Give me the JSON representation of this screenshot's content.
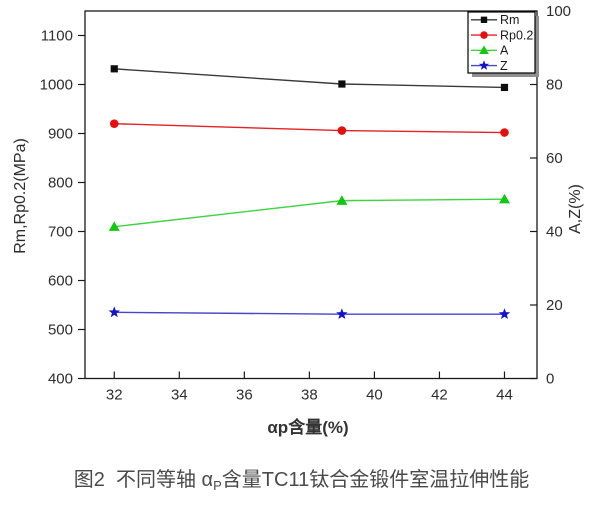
{
  "caption": {
    "prefix": "图2  不同等轴 α",
    "sub": "P",
    "suffix": "含量TC11钛合金锻件室温拉伸性能"
  },
  "chart_data": {
    "type": "line",
    "x": [
      32,
      39,
      44
    ],
    "series": [
      {
        "name": "Rm",
        "axis": "left",
        "marker": "square",
        "line_color": "#3a3a3a",
        "marker_color": "#0d0d0d",
        "values": [
          1032,
          1001,
          994
        ]
      },
      {
        "name": "Rp0.2",
        "axis": "left",
        "marker": "circle",
        "line_color": "#e62222",
        "marker_color": "#e60f0f",
        "values": [
          920,
          906,
          902
        ]
      },
      {
        "name": "A",
        "axis": "right",
        "marker": "triangle",
        "line_color": "#3fd43f",
        "marker_color": "#12c812",
        "values": [
          41.3,
          48.4,
          48.8
        ]
      },
      {
        "name": "Z",
        "axis": "right",
        "marker": "star",
        "line_color": "#4646c8",
        "marker_color": "#1414cc",
        "values": [
          18,
          17.5,
          17.5
        ]
      }
    ],
    "xlabel": "αp含量(%)",
    "ylabel_left": "Rm,Rp0.2(MPa)",
    "ylabel_right": "A,Z(%)",
    "x_ticks": [
      32,
      34,
      36,
      38,
      40,
      42,
      44
    ],
    "left_ticks": [
      400,
      500,
      600,
      700,
      800,
      900,
      1000,
      1100
    ],
    "right_ticks": [
      0,
      20,
      40,
      60,
      80,
      100
    ],
    "xlim": [
      31.1,
      45.0
    ],
    "left_lim": [
      400,
      1150
    ],
    "right_lim": [
      0,
      100
    ],
    "grid": false,
    "legend_position": "top-right",
    "legend_entries": [
      "Rm",
      "Rp0.2",
      "A",
      "Z"
    ],
    "axis_color": "#1a1a1a",
    "tick_text_color": "#2e2e2e",
    "legend_shadow_color": "#909090",
    "background_color": "#ffffff"
  }
}
